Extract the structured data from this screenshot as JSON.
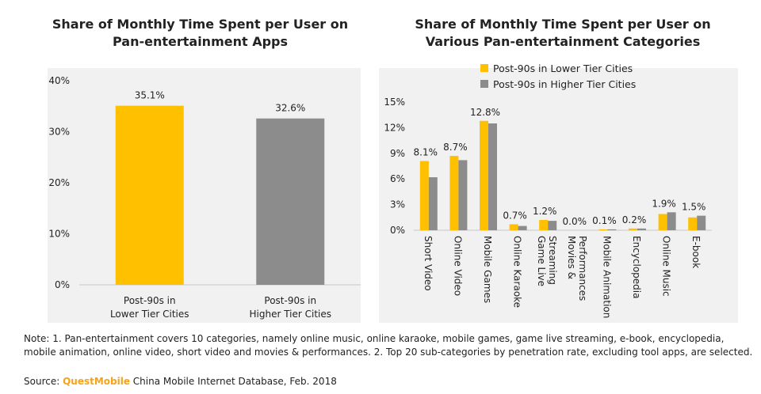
{
  "chart_data": [
    {
      "type": "bar",
      "title": "Share of Monthly Time Spent per User on\nPan-entertainment Apps",
      "categories": [
        "Post-90s in\nLower Tier Cities",
        "Post-90s in\nHigher Tier Cities"
      ],
      "values": [
        35.1,
        32.6
      ],
      "data_labels": [
        "35.1%",
        "32.6%"
      ],
      "colors": [
        "#ffc000",
        "#8c8c8c"
      ],
      "ylim": [
        0,
        40
      ],
      "yticks": [
        "0%",
        "10%",
        "20%",
        "30%",
        "40%"
      ]
    },
    {
      "type": "bar",
      "title": "Share of Monthly Time Spent per User on\nVarious Pan-entertainment Categories",
      "categories": [
        "Short Video",
        "Online Video",
        "Mobile Games",
        "Online Karaoke",
        "Game Live\nStreaming",
        "Movies &\nPerformances",
        "Mobile Animation",
        "Encyclopedia",
        "Online Music",
        "E-book"
      ],
      "series": [
        {
          "name": "Post-90s in Lower Tier Cities",
          "color": "#ffc000",
          "values": [
            8.1,
            8.7,
            12.8,
            0.7,
            1.2,
            0.0,
            0.1,
            0.2,
            1.9,
            1.5
          ]
        },
        {
          "name": "Post-90s in Higher Tier Cities",
          "color": "#8c8c8c",
          "values": [
            6.2,
            8.2,
            12.5,
            0.5,
            1.1,
            0.0,
            0.1,
            0.2,
            2.1,
            1.7
          ]
        }
      ],
      "data_labels": [
        "8.1%",
        "8.7%",
        "12.8%",
        "0.7%",
        "1.2%",
        "0.0%",
        "0.1%",
        "0.2%",
        "1.9%",
        "1.5%"
      ],
      "ylim": [
        0,
        15
      ],
      "yticks": [
        "0%",
        "3%",
        "6%",
        "9%",
        "12%",
        "15%"
      ],
      "legend_position": "top"
    }
  ],
  "note": "Note: 1. Pan-entertainment covers 10 categories, namely online music, online karaoke, mobile games, game live streaming, e-book, encyclopedia, mobile animation, online video, short video and movies & performances. 2. Top 20 sub-categories by penetration rate, excluding tool apps, are selected.",
  "source": {
    "prefix": "Source: ",
    "brand": "QuestMobile",
    "text": " China Mobile Internet Database, Feb. 2018"
  }
}
